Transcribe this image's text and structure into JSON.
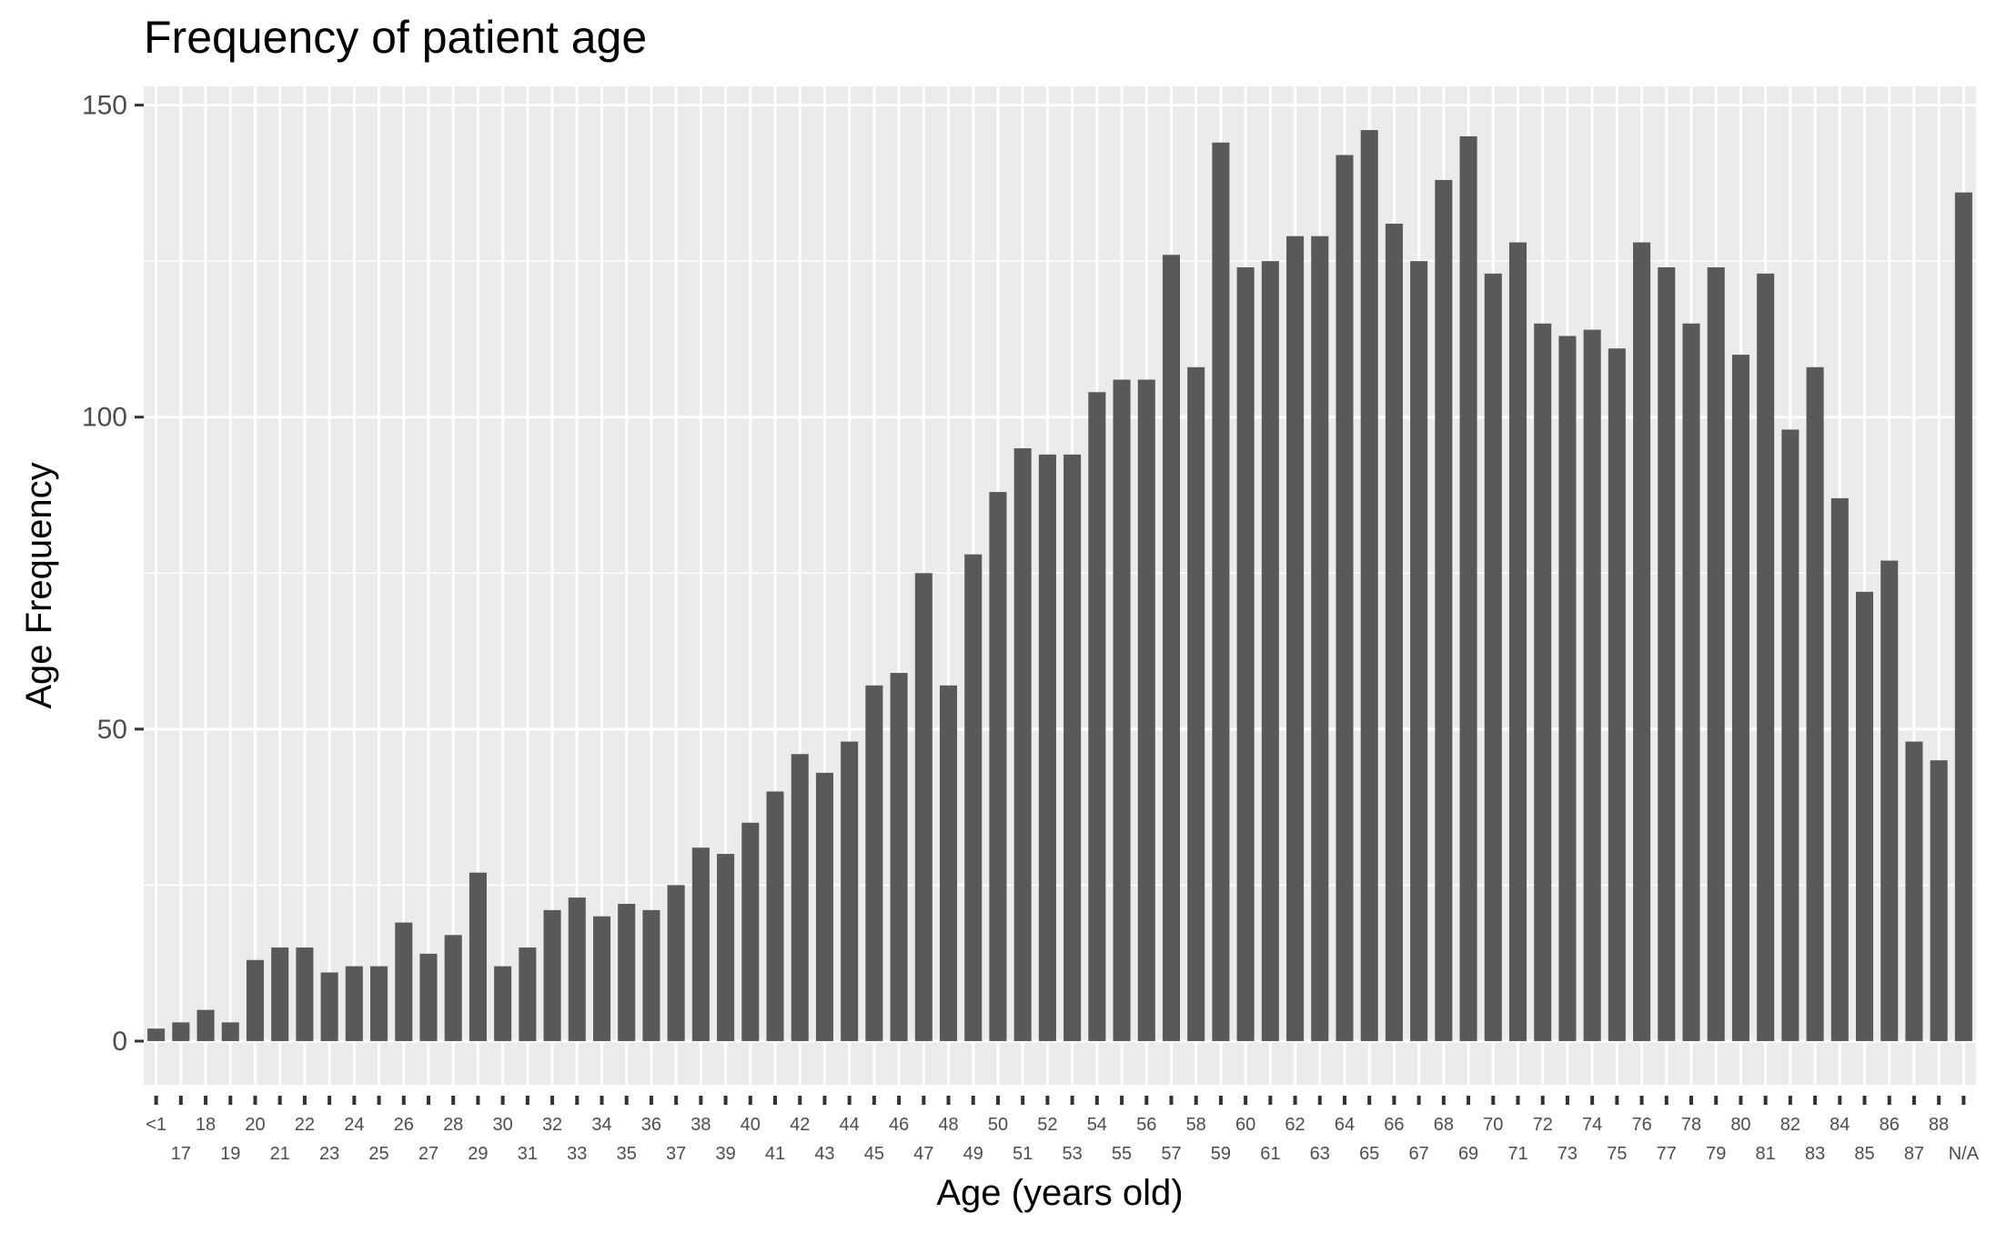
{
  "chart_data": {
    "type": "bar",
    "title": "Frequency of patient age",
    "xlabel": "Age (years old)",
    "ylabel": "Age Frequency",
    "ylim": [
      -7,
      153
    ],
    "yticks": [
      0,
      50,
      100,
      150
    ],
    "grid": true,
    "colors": {
      "bar": "#595959",
      "panel": "#ebebeb",
      "grid": "#ffffff"
    },
    "categories": [
      "<1",
      "17",
      "18",
      "19",
      "20",
      "21",
      "22",
      "23",
      "24",
      "25",
      "26",
      "27",
      "28",
      "29",
      "30",
      "31",
      "32",
      "33",
      "34",
      "35",
      "36",
      "37",
      "38",
      "39",
      "40",
      "41",
      "42",
      "43",
      "44",
      "45",
      "46",
      "47",
      "48",
      "49",
      "50",
      "51",
      "52",
      "53",
      "54",
      "55",
      "56",
      "57",
      "58",
      "59",
      "60",
      "61",
      "62",
      "63",
      "64",
      "65",
      "66",
      "67",
      "68",
      "69",
      "70",
      "71",
      "72",
      "73",
      "74",
      "75",
      "76",
      "77",
      "78",
      "79",
      "80",
      "81",
      "82",
      "83",
      "84",
      "85",
      "86",
      "87",
      "88",
      "N/A"
    ],
    "values": [
      2,
      3,
      5,
      3,
      13,
      15,
      15,
      11,
      12,
      12,
      19,
      14,
      17,
      27,
      12,
      15,
      21,
      23,
      20,
      22,
      21,
      25,
      31,
      30,
      35,
      40,
      46,
      43,
      48,
      57,
      59,
      75,
      57,
      78,
      88,
      95,
      94,
      94,
      104,
      106,
      106,
      126,
      108,
      144,
      124,
      125,
      129,
      129,
      142,
      146,
      131,
      125,
      138,
      145,
      123,
      128,
      115,
      113,
      114,
      111,
      128,
      124,
      115,
      124,
      110,
      123,
      98,
      108,
      87,
      72,
      77,
      48,
      45,
      136
    ]
  }
}
